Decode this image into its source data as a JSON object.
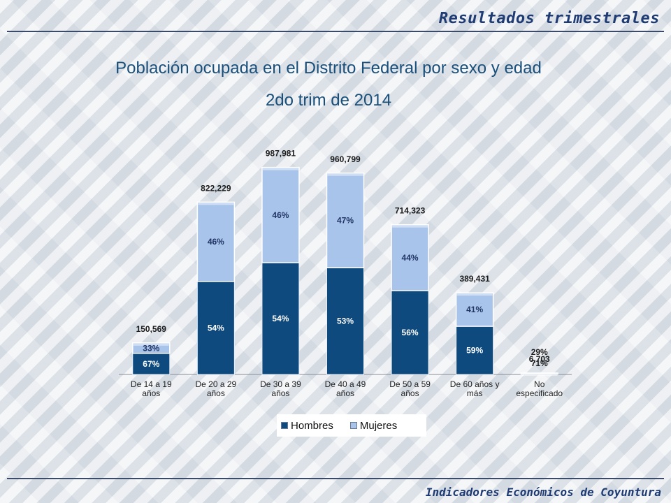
{
  "header": {
    "title": "Resultados trimestrales"
  },
  "footer": {
    "title": "Indicadores Económicos de Coyuntura"
  },
  "colors": {
    "hombres": "#0e4a7d",
    "mujeres": "#a9c4ea",
    "accent": "#1f3b73"
  },
  "chart_data": {
    "type": "bar",
    "stacked": true,
    "title": "Población ocupada en el Distrito Federal por sexo y edad",
    "subtitle": "2do trim de 2014",
    "categories": [
      "De 14 a 19 años",
      "De 20 a 29 años",
      "De 30 a 39 años",
      "De 40 a 49 años",
      "De 50 a 59 años",
      "De 60 años y más",
      "No especificado"
    ],
    "tick_labels": [
      [
        "De 14 a 19",
        "años"
      ],
      [
        "De 20 a 29",
        "años"
      ],
      [
        "De 30 a 39",
        "años"
      ],
      [
        "De 40 a 49",
        "años"
      ],
      [
        "De 50 a 59",
        "años"
      ],
      [
        "De 60 años y",
        "más"
      ],
      [
        "No",
        "especificado"
      ]
    ],
    "totals": [
      150569,
      822229,
      987981,
      960799,
      714323,
      389431,
      6703
    ],
    "total_labels": [
      "150,569",
      "822,229",
      "987,981",
      "960,799",
      "714,323",
      "389,431",
      "6,703"
    ],
    "series": [
      {
        "name": "Hombres",
        "percent": [
          67,
          54,
          54,
          53,
          56,
          59,
          71
        ],
        "labels": [
          "67%",
          "54%",
          "54%",
          "53%",
          "56%",
          "59%",
          "71%"
        ]
      },
      {
        "name": "Mujeres",
        "percent": [
          33,
          46,
          46,
          47,
          44,
          41,
          29
        ],
        "labels": [
          "33%",
          "46%",
          "46%",
          "47%",
          "44%",
          "41%",
          "29%"
        ]
      }
    ],
    "ylim": [
      0,
      1000000
    ],
    "grid": false,
    "legend": "bottom"
  }
}
